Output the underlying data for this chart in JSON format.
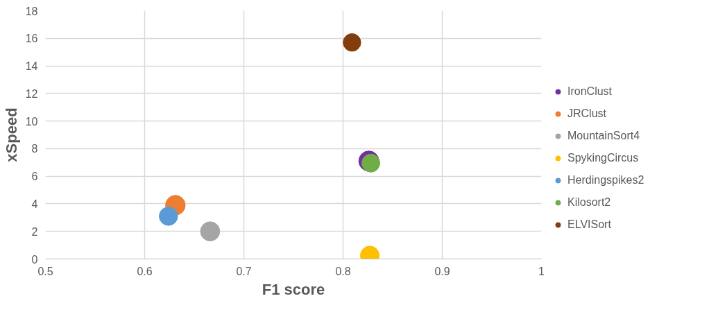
{
  "chart_data": {
    "type": "scatter",
    "xlabel": "F1 score",
    "ylabel": "xSpeed",
    "xlim": [
      0.5,
      1
    ],
    "xticks": [
      0.5,
      0.6,
      0.7,
      0.8,
      0.9,
      1
    ],
    "ylim": [
      0,
      18
    ],
    "yticks": [
      0,
      2,
      4,
      6,
      8,
      10,
      12,
      14,
      16,
      18
    ],
    "grid": true,
    "legend": "right",
    "marker": "circle",
    "series": [
      {
        "name": "IronClust",
        "color": "#7030a0",
        "x": [
          0.826
        ],
        "values": [
          7.1
        ]
      },
      {
        "name": "JRClust",
        "color": "#ed7d31",
        "x": [
          0.631
        ],
        "values": [
          3.9
        ]
      },
      {
        "name": "MountainSort4",
        "color": "#a5a5a5",
        "x": [
          0.666
        ],
        "values": [
          2.0
        ]
      },
      {
        "name": "SpykingCircus",
        "color": "#ffc000",
        "x": [
          0.827
        ],
        "values": [
          0.25
        ]
      },
      {
        "name": "Herdingspikes2",
        "color": "#5b9bd5",
        "x": [
          0.624
        ],
        "values": [
          3.1
        ]
      },
      {
        "name": "Kilosort2",
        "color": "#70ad47",
        "x": [
          0.828
        ],
        "values": [
          6.95
        ]
      },
      {
        "name": "ELVISort",
        "color": "#843c0c",
        "x": [
          0.809
        ],
        "values": [
          15.7
        ]
      }
    ]
  }
}
